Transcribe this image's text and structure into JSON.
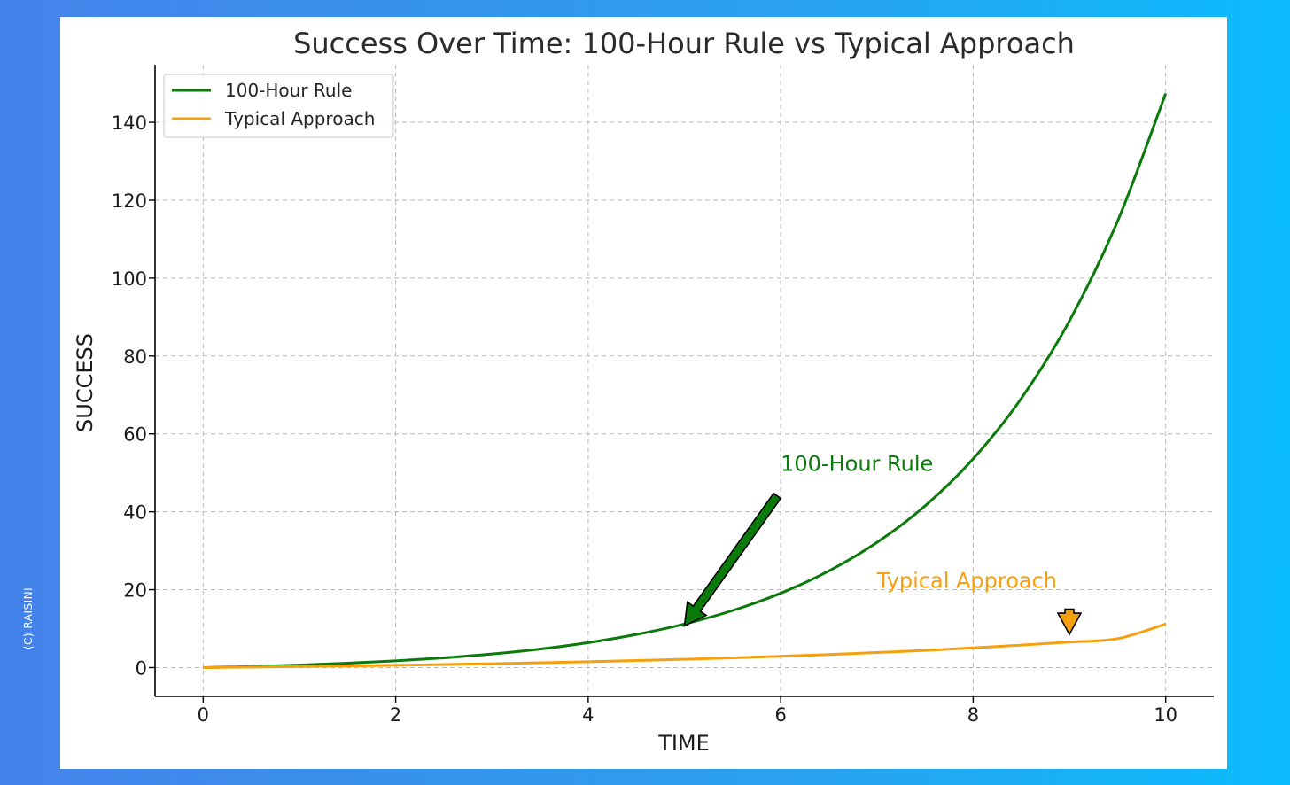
{
  "watermark": "(C) RAISINI",
  "chart_data": {
    "type": "line",
    "title": "Success Over Time: 100-Hour Rule vs Typical Approach",
    "xlabel": "TIME",
    "ylabel": "SUCCESS",
    "xlim": [
      -0.5,
      10.5
    ],
    "ylim": [
      -7.4,
      154.8
    ],
    "xticks": [
      0,
      2,
      4,
      6,
      8,
      10
    ],
    "yticks": [
      0,
      20,
      40,
      60,
      80,
      100,
      120,
      140
    ],
    "grid": true,
    "legend_position": "top-left",
    "series": [
      {
        "name": "100-Hour Rule",
        "color": "#0a7a0a",
        "x": [
          0,
          0.5,
          1,
          1.5,
          2,
          2.5,
          3,
          3.5,
          4,
          4.5,
          5,
          5.5,
          6,
          6.5,
          7,
          7.5,
          8,
          8.5,
          9,
          9.5,
          10
        ],
        "values": [
          0,
          0.28,
          0.65,
          1.12,
          1.72,
          2.49,
          3.48,
          4.75,
          6.39,
          8.49,
          11.18,
          14.64,
          19.09,
          24.8,
          32.12,
          41.52,
          53.6,
          69.11,
          89.02,
          114.6,
          147.4
        ]
      },
      {
        "name": "Typical Approach",
        "color": "#f5a00f",
        "x": [
          0,
          0.5,
          1,
          1.5,
          2,
          2.5,
          3,
          3.5,
          4,
          4.5,
          5,
          5.5,
          6,
          6.5,
          7,
          7.5,
          8,
          8.5,
          9,
          9.5,
          10
        ],
        "values": [
          0,
          0.13,
          0.27,
          0.43,
          0.6,
          0.79,
          1.0,
          1.24,
          1.5,
          1.8,
          2.13,
          2.49,
          2.9,
          3.35,
          3.85,
          4.4,
          5.05,
          5.76,
          6.54,
          7.41,
          11.18
        ]
      }
    ],
    "annotations": [
      {
        "text": "100-Hour Rule",
        "x": 6.0,
        "y": 50,
        "point_x": 5.0,
        "point_y": 12.5,
        "color": "#0a7a0a"
      },
      {
        "text": "Typical Approach",
        "x": 7.0,
        "y": 20,
        "point_x": 9.0,
        "point_y": 8.5,
        "color": "#f5a00f"
      }
    ]
  }
}
